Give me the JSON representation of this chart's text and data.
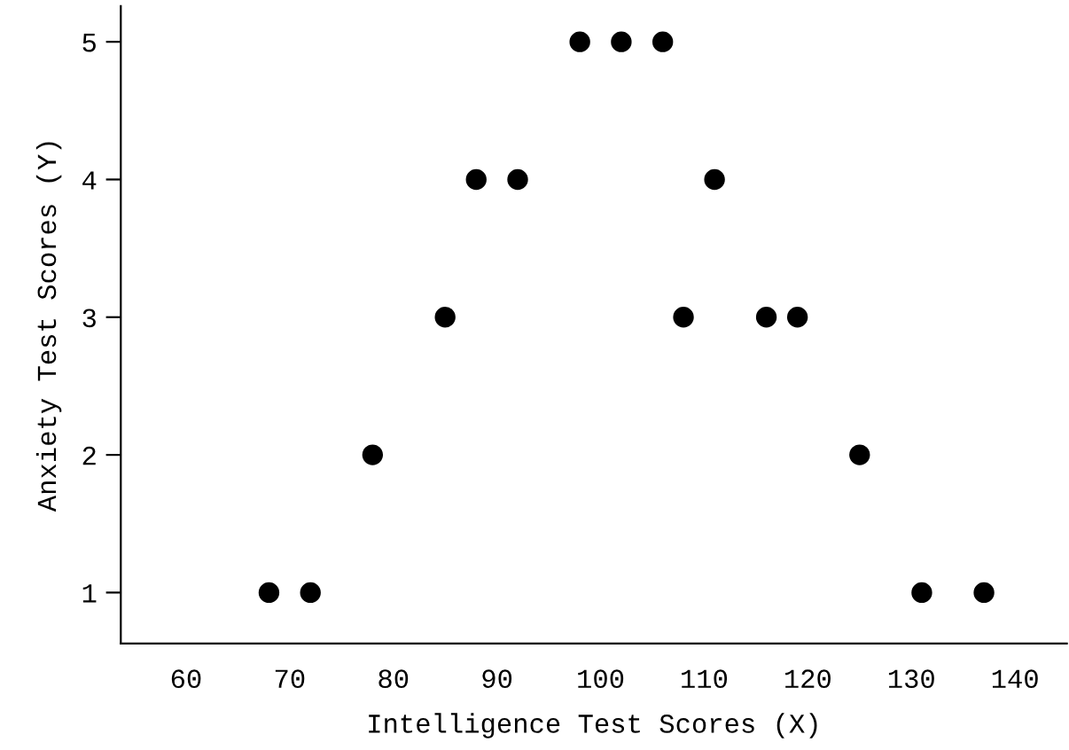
{
  "chart_data": {
    "type": "scatter",
    "xlabel": "Intelligence Test Scores (X)",
    "ylabel": "Anxiety Test Scores (Y)",
    "series": [
      {
        "color": "#000000",
        "x": [
          68,
          72,
          78,
          85,
          88,
          92,
          98,
          102,
          106,
          108,
          111,
          116,
          119,
          125,
          131,
          137
        ],
        "values": [
          1,
          1,
          2,
          3,
          4,
          4,
          5,
          5,
          5,
          3,
          4,
          3,
          3,
          2,
          1,
          1
        ]
      }
    ],
    "xlim": [
      53.7,
      145
    ],
    "xticks": [
      60,
      70,
      80,
      90,
      100,
      110,
      120,
      130,
      140
    ],
    "ylim": [
      0.63,
      5.26
    ],
    "yticks": [
      1,
      2,
      3,
      4,
      5
    ],
    "marker": "circle",
    "grid": false,
    "legend": false
  }
}
